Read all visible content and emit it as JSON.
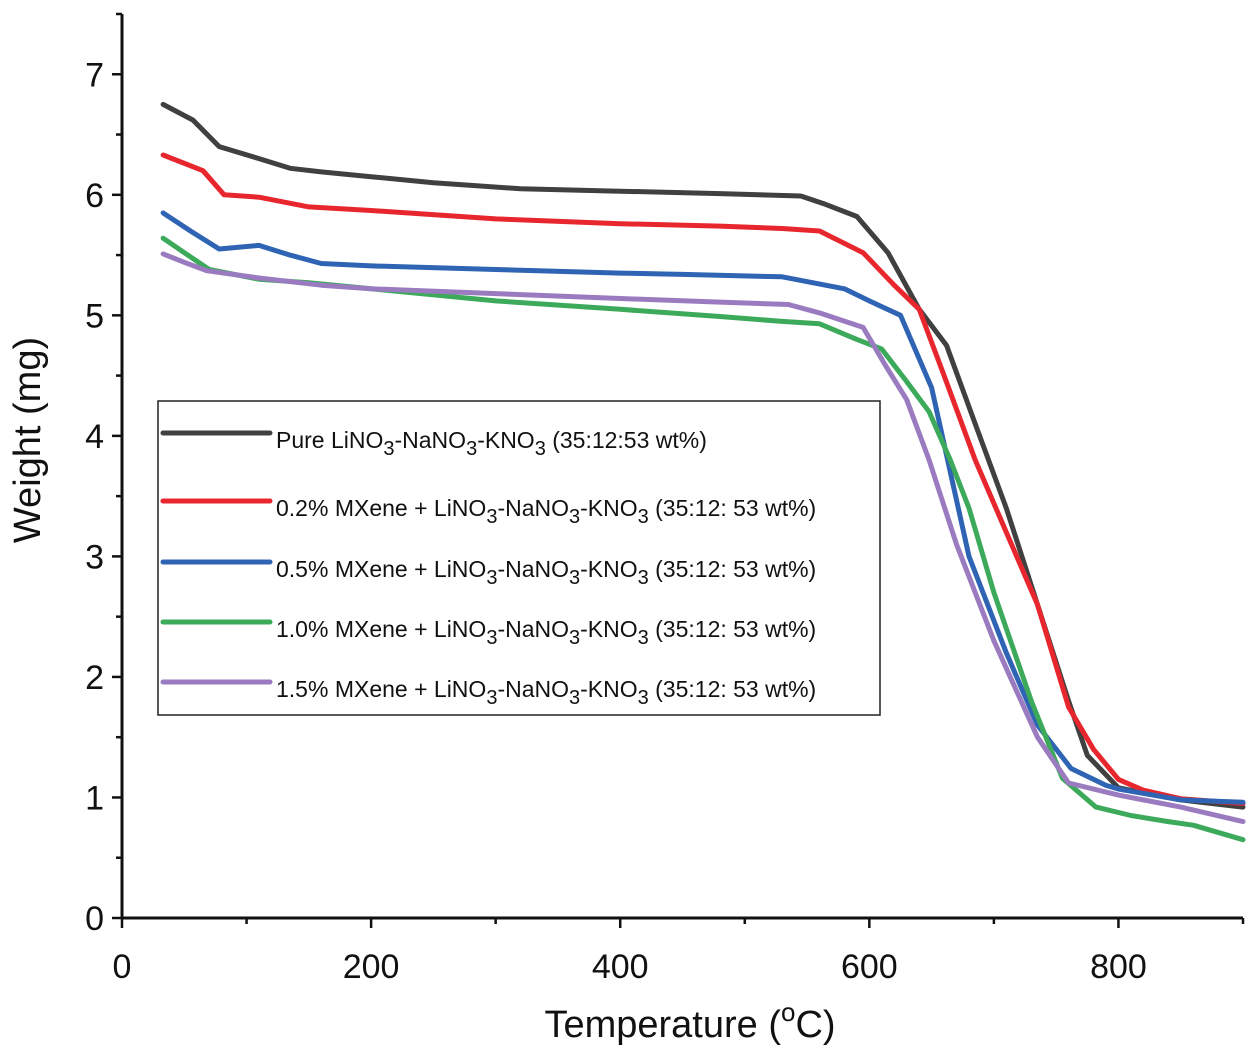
{
  "chart_data": {
    "type": "line",
    "title": "",
    "xlabel_main": "Temperature (",
    "xlabel_sup": "o",
    "xlabel_unit": "C)",
    "ylabel": "Weight (mg)",
    "xlim": [
      0,
      900
    ],
    "ylim": [
      0,
      7.5
    ],
    "xticks": [
      0,
      200,
      400,
      600,
      800
    ],
    "yticks": [
      0,
      1,
      2,
      3,
      4,
      5,
      6,
      7
    ],
    "grid": false,
    "legend_position": "center-left",
    "series": [
      {
        "name": "Pure LiNO3-NaNO3-KNO3 (35:12:53 wt%)",
        "legend": [
          [
            "Pure LiNO",
            ""
          ],
          [
            "3",
            "sub"
          ],
          [
            "-NaNO",
            ""
          ],
          [
            "3",
            "sub"
          ],
          [
            "-KNO",
            ""
          ],
          [
            "3",
            "sub"
          ],
          [
            " (35:12:53 wt%)",
            ""
          ]
        ],
        "color": "#404040",
        "x": [
          33,
          57,
          78,
          110,
          135,
          160,
          200,
          250,
          320,
          400,
          480,
          545,
          565,
          590,
          615,
          640,
          662,
          685,
          710,
          735,
          760,
          775,
          800,
          850,
          900
        ],
        "y": [
          6.75,
          6.62,
          6.4,
          6.3,
          6.22,
          6.19,
          6.15,
          6.1,
          6.05,
          6.03,
          6.01,
          5.99,
          5.92,
          5.82,
          5.52,
          5.05,
          4.75,
          4.1,
          3.4,
          2.6,
          1.8,
          1.35,
          1.08,
          0.98,
          0.92
        ]
      },
      {
        "name": "0.2% MXene + LiNO3-NaNO3-KNO3 (35:12: 53 wt%)",
        "legend": [
          [
            "0.2% MXene + LiNO",
            ""
          ],
          [
            "3",
            "sub"
          ],
          [
            "-NaNO",
            ""
          ],
          [
            "3",
            "sub"
          ],
          [
            "-KNO",
            ""
          ],
          [
            "3",
            "sub"
          ],
          [
            " (35:12: 53 wt%)",
            ""
          ]
        ],
        "color": "#e8262e",
        "x": [
          33,
          65,
          82,
          110,
          150,
          200,
          300,
          400,
          480,
          530,
          560,
          595,
          620,
          640,
          660,
          685,
          710,
          735,
          760,
          780,
          800,
          820,
          850,
          900
        ],
        "y": [
          6.33,
          6.2,
          6.0,
          5.98,
          5.9,
          5.87,
          5.8,
          5.76,
          5.74,
          5.72,
          5.7,
          5.52,
          5.25,
          5.05,
          4.5,
          3.8,
          3.2,
          2.6,
          1.75,
          1.4,
          1.15,
          1.06,
          0.99,
          0.95
        ]
      },
      {
        "name": "0.5% MXene + LiNO3-NaNO3-KNO3 (35:12: 53 wt%)",
        "legend": [
          [
            "0.5% MXene + LiNO",
            ""
          ],
          [
            "3",
            "sub"
          ],
          [
            "-NaNO",
            ""
          ],
          [
            "3",
            "sub"
          ],
          [
            "-KNO",
            ""
          ],
          [
            "3",
            "sub"
          ],
          [
            " (35:12: 53 wt%)",
            ""
          ]
        ],
        "color": "#2f63b3",
        "x": [
          33,
          55,
          78,
          110,
          135,
          160,
          200,
          300,
          400,
          450,
          530,
          555,
          580,
          600,
          625,
          650,
          680,
          710,
          735,
          762,
          790,
          800,
          850,
          900
        ],
        "y": [
          5.85,
          5.7,
          5.55,
          5.58,
          5.5,
          5.43,
          5.41,
          5.38,
          5.35,
          5.34,
          5.32,
          5.27,
          5.22,
          5.12,
          5.0,
          4.4,
          3.0,
          2.2,
          1.6,
          1.24,
          1.1,
          1.07,
          0.98,
          0.96
        ]
      },
      {
        "name": "1.0% MXene + LiNO3-NaNO3-KNO3 (35:12: 53 wt%)",
        "legend": [
          [
            "1.0% MXene + LiNO",
            ""
          ],
          [
            "3",
            "sub"
          ],
          [
            "-NaNO",
            ""
          ],
          [
            "3",
            "sub"
          ],
          [
            "-KNO",
            ""
          ],
          [
            "3",
            "sub"
          ],
          [
            " (35:12: 53 wt%)",
            ""
          ]
        ],
        "color": "#3caa5a",
        "x": [
          33,
          50,
          70,
          110,
          150,
          200,
          300,
          400,
          480,
          530,
          560,
          590,
          610,
          630,
          648,
          665,
          680,
          700,
          730,
          755,
          782,
          810,
          840,
          860,
          900
        ],
        "y": [
          5.64,
          5.52,
          5.38,
          5.3,
          5.27,
          5.22,
          5.12,
          5.05,
          4.99,
          4.95,
          4.93,
          4.8,
          4.72,
          4.45,
          4.2,
          3.8,
          3.4,
          2.7,
          1.8,
          1.16,
          0.92,
          0.85,
          0.8,
          0.77,
          0.65
        ]
      },
      {
        "name": "1.5% MXene + LiNO3-NaNO3-KNO3 (35:12: 53 wt%)",
        "legend": [
          [
            "1.5% MXene + LiNO",
            ""
          ],
          [
            "3",
            "sub"
          ],
          [
            "-NaNO",
            ""
          ],
          [
            "3",
            "sub"
          ],
          [
            "-KNO",
            ""
          ],
          [
            "3",
            "sub"
          ],
          [
            " (35:12: 53 wt%)",
            ""
          ]
        ],
        "color": "#9a7bc0",
        "x": [
          33,
          50,
          68,
          110,
          160,
          200,
          300,
          400,
          480,
          535,
          560,
          595,
          612,
          630,
          648,
          670,
          700,
          735,
          760,
          800,
          850,
          900
        ],
        "y": [
          5.51,
          5.44,
          5.37,
          5.31,
          5.25,
          5.22,
          5.18,
          5.14,
          5.11,
          5.09,
          5.02,
          4.9,
          4.6,
          4.3,
          3.8,
          3.1,
          2.3,
          1.5,
          1.12,
          1.02,
          0.92,
          0.8
        ]
      }
    ]
  }
}
